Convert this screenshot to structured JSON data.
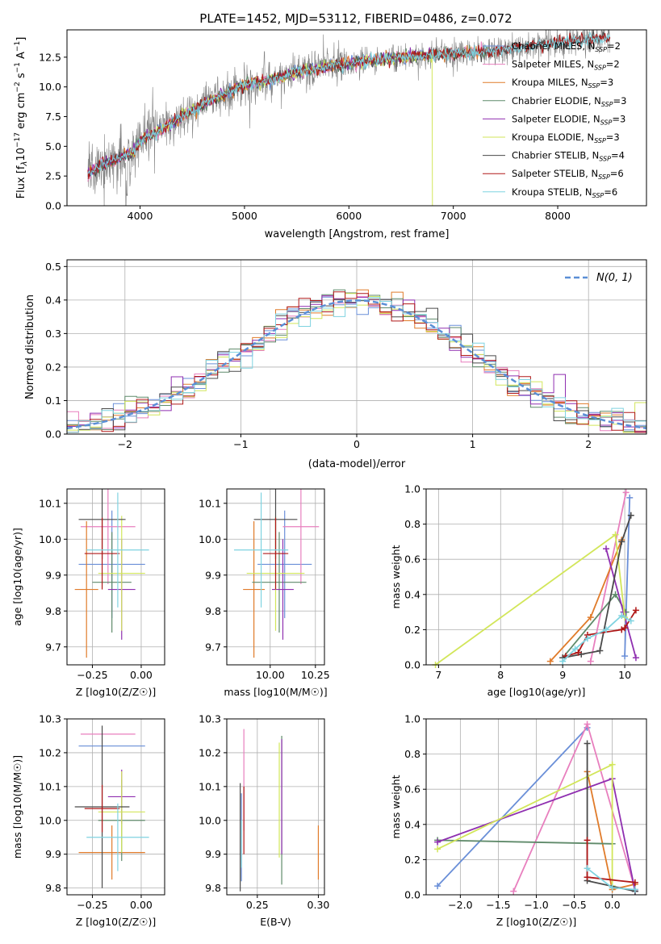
{
  "colors": {
    "Chabrier MILES": "#6a8fd8",
    "Salpeter MILES": "#e87fbe",
    "Kroupa MILES": "#e07b2a",
    "Chabrier ELODIE": "#5f8a6a",
    "Salpeter ELODIE": "#8f2fb0",
    "Kroupa ELODIE": "#d2e65a",
    "Chabrier STELIB": "#4a4a4a",
    "Salpeter STELIB": "#b01818",
    "Kroupa STELIB": "#7fd3e0",
    "data": "#808080",
    "normal": "#5b8fd6"
  },
  "chart_data": [
    {
      "id": "spectrum",
      "type": "line",
      "title": "PLATE=1452, MJD=53112, FIBERID=0486, z=0.072",
      "xlabel": "wavelength [Angstrom, rest frame]",
      "ylabel": "Flux [f_λ10^-17 erg cm^-2 s^-1 A^-1]",
      "xlim": [
        3300,
        8850
      ],
      "ylim": [
        0,
        14.8
      ],
      "xticks": [
        "4000",
        "5000",
        "6000",
        "7000",
        "8000"
      ],
      "yticks": [
        "0.0",
        "2.5",
        "5.0",
        "7.5",
        "10.0",
        "12.5"
      ],
      "continuum_x": [
        3500,
        3600,
        3800,
        3950,
        4000,
        4200,
        4400,
        4600,
        4800,
        5000,
        5200,
        5500,
        5800,
        6000,
        6300,
        6600,
        7000,
        7400,
        7800,
        8200,
        8500
      ],
      "continuum_y": [
        2.6,
        3.3,
        4.0,
        4.6,
        5.5,
        6.4,
        7.5,
        8.5,
        9.4,
        10.2,
        10.5,
        11.2,
        11.7,
        12.0,
        12.3,
        12.6,
        12.8,
        13.0,
        13.5,
        13.9,
        14.1
      ],
      "legend": [
        {
          "name": "Chabrier MILES",
          "nssp": "2"
        },
        {
          "name": "Salpeter MILES",
          "nssp": "2"
        },
        {
          "name": "Kroupa MILES",
          "nssp": "3"
        },
        {
          "name": "Chabrier ELODIE",
          "nssp": "3"
        },
        {
          "name": "Salpeter ELODIE",
          "nssp": "3"
        },
        {
          "name": "Kroupa ELODIE",
          "nssp": "3"
        },
        {
          "name": "Chabrier STELIB",
          "nssp": "4"
        },
        {
          "name": "Salpeter STELIB",
          "nssp": "6"
        },
        {
          "name": "Kroupa STELIB",
          "nssp": "6"
        }
      ],
      "legend_position": "right"
    },
    {
      "id": "residuals",
      "type": "line",
      "xlabel": "(data-model)/error",
      "ylabel": "Normed distribution",
      "xlim": [
        -2.5,
        2.5
      ],
      "ylim": [
        0,
        0.52
      ],
      "xticks": [
        "−2",
        "−1",
        "0",
        "1",
        "2"
      ],
      "yticks": [
        "0.0",
        "0.1",
        "0.2",
        "0.3",
        "0.4",
        "0.5"
      ],
      "legend": [
        "N(0, 1)"
      ],
      "legend_position": "top-right",
      "grid": true
    },
    {
      "id": "age_vs_Z",
      "type": "scatter",
      "xlabel": "Z [log10(Z/Z☉)]",
      "ylabel": "age  [log10(age/yr)]",
      "xlim": [
        -0.38,
        0.12
      ],
      "ylim": [
        9.65,
        10.14
      ],
      "xticks": [
        "−0.25",
        "0.00"
      ],
      "yticks": [
        "9.7",
        "9.8",
        "9.9",
        "10.0",
        "10.1"
      ],
      "points": [
        {
          "model": "Chabrier MILES",
          "x": -0.15,
          "xerr": 0.17,
          "y": 9.93,
          "yerr": 0.15
        },
        {
          "model": "Salpeter MILES",
          "x": -0.17,
          "xerr": 0.14,
          "y": 10.035,
          "yerr": 0.16
        },
        {
          "model": "Kroupa MILES",
          "x": -0.28,
          "xerr": 0.06,
          "y": 9.86,
          "yerr": 0.19
        },
        {
          "model": "Chabrier ELODIE",
          "x": -0.15,
          "xerr": 0.1,
          "y": 9.88,
          "yerr": 0.14
        },
        {
          "model": "Salpeter ELODIE",
          "x": -0.1,
          "xerr": 0.07,
          "y": 9.86,
          "yerr": 0.14
        },
        {
          "model": "Kroupa ELODIE",
          "x": -0.1,
          "xerr": 0.12,
          "y": 9.905,
          "yerr": 0.16
        },
        {
          "model": "Chabrier STELIB",
          "x": -0.2,
          "xerr": 0.12,
          "y": 10.055,
          "yerr": 0.11
        },
        {
          "model": "Salpeter STELIB",
          "x": -0.2,
          "xerr": 0.09,
          "y": 9.96,
          "yerr": 0.1
        },
        {
          "model": "Kroupa STELIB",
          "x": -0.12,
          "xerr": 0.16,
          "y": 9.97,
          "yerr": 0.16
        }
      ]
    },
    {
      "id": "age_vs_mass",
      "type": "scatter",
      "xlabel": "mass [log10(M/M☉)]",
      "ylabel": "",
      "xlim": [
        9.76,
        10.3
      ],
      "ylim": [
        9.65,
        10.14
      ],
      "xticks": [
        "10.00",
        "10.25"
      ],
      "yticks": [
        "9.7",
        "9.8",
        "9.9",
        "10.0",
        "10.1"
      ],
      "points": [
        {
          "model": "Chabrier MILES",
          "x": 10.08,
          "xerr": 0.15,
          "y": 9.93,
          "yerr": 0.15
        },
        {
          "model": "Salpeter MILES",
          "x": 10.17,
          "xerr": 0.1,
          "y": 10.035,
          "yerr": 0.16
        },
        {
          "model": "Kroupa MILES",
          "x": 9.91,
          "xerr": 0.06,
          "y": 9.86,
          "yerr": 0.19
        },
        {
          "model": "Chabrier ELODIE",
          "x": 10.05,
          "xerr": 0.15,
          "y": 9.88,
          "yerr": 0.14
        },
        {
          "model": "Salpeter ELODIE",
          "x": 10.07,
          "xerr": 0.06,
          "y": 9.86,
          "yerr": 0.14
        },
        {
          "model": "Kroupa ELODIE",
          "x": 10.03,
          "xerr": 0.16,
          "y": 9.905,
          "yerr": 0.16
        },
        {
          "model": "Chabrier STELIB",
          "x": 10.03,
          "xerr": 0.12,
          "y": 10.055,
          "yerr": 0.11
        },
        {
          "model": "Salpeter STELIB",
          "x": 10.03,
          "xerr": 0.07,
          "y": 9.96,
          "yerr": 0.1
        },
        {
          "model": "Kroupa STELIB",
          "x": 9.95,
          "xerr": 0.15,
          "y": 9.97,
          "yerr": 0.16
        }
      ]
    },
    {
      "id": "weight_vs_age",
      "type": "line",
      "xlabel": "age  [log10(age/yr)]",
      "ylabel": "mass weight",
      "xlim": [
        6.8,
        10.35
      ],
      "ylim": [
        0,
        1
      ],
      "xticks": [
        "7",
        "8",
        "9",
        "10"
      ],
      "yticks": [
        "0.0",
        "0.2",
        "0.4",
        "0.6",
        "0.8",
        "1.0"
      ],
      "grid": true,
      "series": [
        {
          "model": "Chabrier MILES",
          "x": [
            10.08,
            10.0
          ],
          "y": [
            0.95,
            0.05
          ]
        },
        {
          "model": "Salpeter MILES",
          "x": [
            9.45,
            10.02
          ],
          "y": [
            0.02,
            0.98
          ]
        },
        {
          "model": "Kroupa MILES",
          "x": [
            8.8,
            9.45,
            9.95
          ],
          "y": [
            0.02,
            0.27,
            0.71
          ]
        },
        {
          "model": "Chabrier ELODIE",
          "x": [
            9.0,
            9.85,
            10.02
          ],
          "y": [
            0.04,
            0.4,
            0.3
          ]
        },
        {
          "model": "Salpeter ELODIE",
          "x": [
            9.7,
            10.18,
            9.98
          ],
          "y": [
            0.66,
            0.04,
            0.3
          ]
        },
        {
          "model": "Kroupa ELODIE",
          "x": [
            6.95,
            9.85,
            10.0
          ],
          "y": [
            0.0,
            0.74,
            0.27
          ]
        },
        {
          "model": "Chabrier STELIB",
          "x": [
            9.0,
            9.3,
            9.6,
            9.95,
            10.1
          ],
          "y": [
            0.04,
            0.06,
            0.08,
            0.7,
            0.85
          ]
        },
        {
          "model": "Salpeter STELIB",
          "x": [
            9.05,
            9.25,
            9.4,
            9.95,
            10.0,
            10.18
          ],
          "y": [
            0.05,
            0.07,
            0.17,
            0.2,
            0.21,
            0.31
          ]
        },
        {
          "model": "Kroupa STELIB",
          "x": [
            9.0,
            9.2,
            9.4,
            9.7,
            9.95,
            10.1
          ],
          "y": [
            0.02,
            0.09,
            0.15,
            0.2,
            0.28,
            0.25
          ]
        }
      ]
    },
    {
      "id": "mass_vs_Z",
      "type": "scatter",
      "xlabel": "Z [log10(Z/Z☉)]",
      "ylabel": "mass [log10(M/M☉)]",
      "xlim": [
        -0.38,
        0.12
      ],
      "ylim": [
        9.78,
        10.3
      ],
      "xticks": [
        "−0.25",
        "0.00"
      ],
      "yticks": [
        "9.8",
        "9.9",
        "10.0",
        "10.1",
        "10.2",
        "10.3"
      ],
      "points": [
        {
          "model": "Chabrier MILES",
          "x": -0.15,
          "xerr": 0.17,
          "y": 10.22,
          "yerr": 0.0
        },
        {
          "model": "Salpeter MILES",
          "x": -0.17,
          "xerr": 0.14,
          "y": 10.255,
          "yerr": 0.0
        },
        {
          "model": "Kroupa MILES",
          "x": -0.15,
          "xerr": 0.17,
          "y": 9.905,
          "yerr": 0.08
        },
        {
          "model": "Chabrier ELODIE",
          "x": -0.1,
          "xerr": 0.12,
          "y": 10.0,
          "yerr": 0.12
        },
        {
          "model": "Salpeter ELODIE",
          "x": -0.1,
          "xerr": 0.07,
          "y": 10.07,
          "yerr": 0.08
        },
        {
          "model": "Kroupa ELODIE",
          "x": -0.1,
          "xerr": 0.12,
          "y": 10.025,
          "yerr": 0.12
        },
        {
          "model": "Chabrier STELIB",
          "x": -0.2,
          "xerr": 0.14,
          "y": 10.04,
          "yerr": 0.24
        },
        {
          "model": "Salpeter STELIB",
          "x": -0.2,
          "xerr": 0.09,
          "y": 10.035,
          "yerr": 0.07
        },
        {
          "model": "Kroupa STELIB",
          "x": -0.12,
          "xerr": 0.16,
          "y": 9.95,
          "yerr": 0.1
        }
      ]
    },
    {
      "id": "mass_vs_EBV",
      "type": "scatter",
      "xlabel": "E(B-V)",
      "ylabel": "",
      "xlim": [
        0.225,
        0.305
      ],
      "ylim": [
        9.78,
        10.3
      ],
      "xticks": [
        "0.25",
        "0.30"
      ],
      "yticks": [
        "9.8",
        "9.9",
        "10.0",
        "10.1",
        "10.2",
        "10.3"
      ],
      "points": [
        {
          "model": "Chabrier MILES",
          "x": 0.237,
          "y": 9.95,
          "yerr": 0.13
        },
        {
          "model": "Salpeter MILES",
          "x": 0.239,
          "y": 10.12,
          "yerr": 0.15
        },
        {
          "model": "Kroupa MILES",
          "x": 0.3,
          "y": 9.905,
          "yerr": 0.08
        },
        {
          "model": "Chabrier ELODIE",
          "x": 0.27,
          "y": 10.03,
          "yerr": 0.22
        },
        {
          "model": "Salpeter ELODIE",
          "x": 0.27,
          "y": 10.07,
          "yerr": 0.17
        },
        {
          "model": "Kroupa ELODIE",
          "x": 0.268,
          "y": 10.06,
          "yerr": 0.17
        },
        {
          "model": "Chabrier STELIB",
          "x": 0.236,
          "y": 9.95,
          "yerr": 0.16
        },
        {
          "model": "Salpeter STELIB",
          "x": 0.239,
          "y": 10.0,
          "yerr": 0.1
        },
        {
          "model": "Kroupa STELIB",
          "x": 0.237,
          "y": 9.93,
          "yerr": 0.07
        }
      ]
    },
    {
      "id": "weight_vs_Z",
      "type": "line",
      "xlabel": "Z [log10(Z/Z☉)]",
      "ylabel": "mass weight",
      "xlim": [
        -2.45,
        0.45
      ],
      "ylim": [
        0,
        1
      ],
      "xticks": [
        "−2.0",
        "−1.5",
        "−1.0",
        "−0.5",
        "0.0"
      ],
      "yticks": [
        "0.0",
        "0.2",
        "0.4",
        "0.6",
        "0.8",
        "1.0"
      ],
      "grid": true,
      "series": [
        {
          "model": "Chabrier MILES",
          "x": [
            -2.3,
            -0.33
          ],
          "y": [
            0.05,
            0.95
          ]
        },
        {
          "model": "Salpeter MILES",
          "x": [
            -1.3,
            -0.33,
            0.3
          ],
          "y": [
            0.02,
            0.97,
            0.03
          ]
        },
        {
          "model": "Kroupa MILES",
          "x": [
            -0.33,
            0.0,
            0.3
          ],
          "y": [
            0.7,
            0.03,
            0.06
          ]
        },
        {
          "model": "Chabrier ELODIE",
          "x": [
            -2.3,
            0.0
          ],
          "y": [
            0.31,
            0.29
          ]
        },
        {
          "model": "Salpeter ELODIE",
          "x": [
            -2.3,
            0.0,
            0.3
          ],
          "y": [
            0.3,
            0.66,
            0.02
          ]
        },
        {
          "model": "Kroupa ELODIE",
          "x": [
            -2.3,
            0.0,
            0.0
          ],
          "y": [
            0.26,
            0.74,
            0.05
          ]
        },
        {
          "model": "Chabrier STELIB",
          "x": [
            -0.33,
            -0.33,
            0.3
          ],
          "y": [
            0.86,
            0.08,
            0.02
          ]
        },
        {
          "model": "Salpeter STELIB",
          "x": [
            -0.33,
            -0.33,
            0.3
          ],
          "y": [
            0.31,
            0.1,
            0.07
          ]
        },
        {
          "model": "Kroupa STELIB",
          "x": [
            -0.33,
            0.0,
            0.3
          ],
          "y": [
            0.15,
            0.04,
            0.03
          ]
        }
      ]
    }
  ]
}
